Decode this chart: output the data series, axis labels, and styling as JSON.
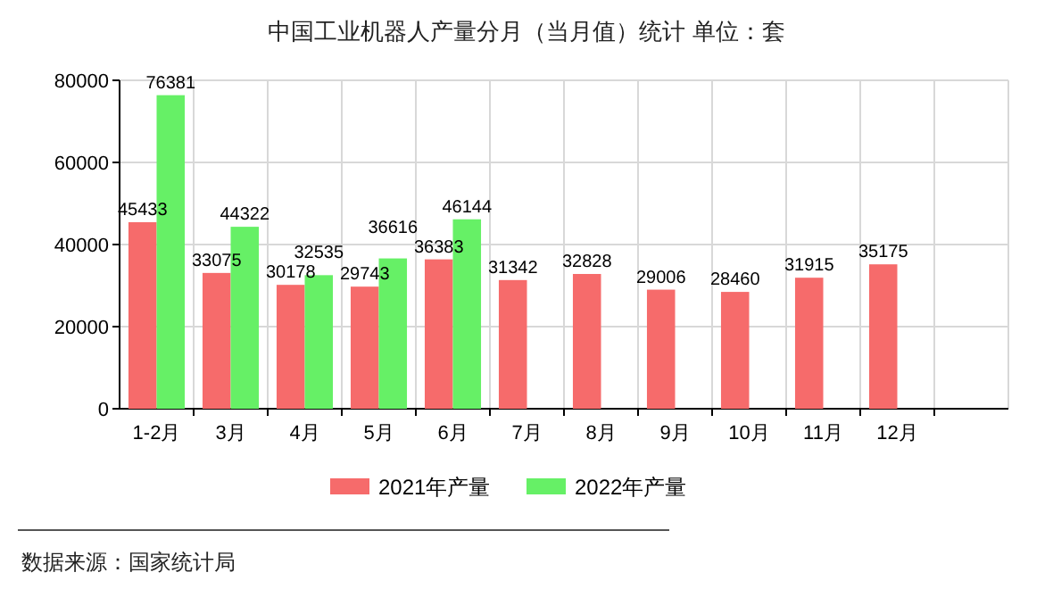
{
  "chart_data": {
    "type": "bar",
    "title": "中国工业机器人产量分月（当月值）统计 单位：套",
    "categories": [
      "1-2月",
      "3月",
      "4月",
      "5月",
      "6月",
      "7月",
      "8月",
      "9月",
      "10月",
      "11月",
      "12月"
    ],
    "series": [
      {
        "name": "2021年产量",
        "color": "#f66b6b",
        "values": [
          45433,
          33075,
          30178,
          29743,
          36383,
          31342,
          32828,
          29006,
          28460,
          31915,
          35175
        ]
      },
      {
        "name": "2022年产量",
        "color": "#66f066",
        "values": [
          76381,
          44322,
          32535,
          36616,
          46144,
          null,
          null,
          null,
          null,
          null,
          null
        ]
      }
    ],
    "ylim": [
      0,
      80000
    ],
    "yticks": [
      0,
      20000,
      40000,
      60000,
      80000
    ],
    "grid": true,
    "legend": "bottom",
    "data_labels": true,
    "annotations": [
      "数据来源：国家统计局"
    ]
  }
}
